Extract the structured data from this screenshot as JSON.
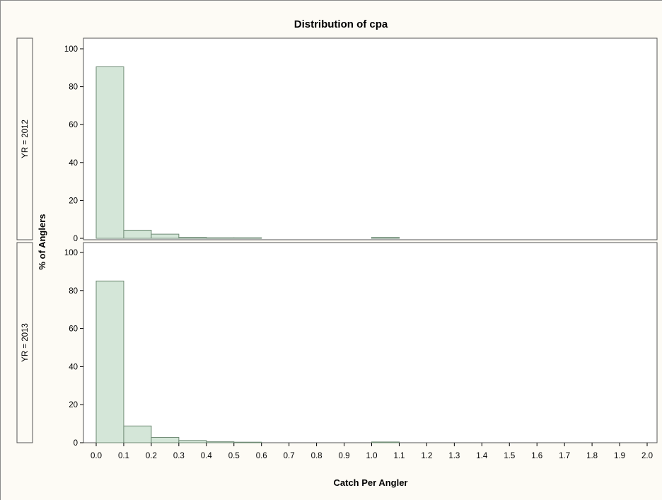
{
  "chart_data": {
    "type": "bar",
    "title": "Distribution of cpa",
    "xlabel": "Catch Per Angler",
    "ylabel": "% of Anglers",
    "xlim": [
      0.0,
      2.0
    ],
    "ylim": [
      0,
      100
    ],
    "xticks": [
      "0.0",
      "0.1",
      "0.2",
      "0.3",
      "0.4",
      "0.5",
      "0.6",
      "0.7",
      "0.8",
      "0.9",
      "1.0",
      "1.1",
      "1.2",
      "1.3",
      "1.4",
      "1.5",
      "1.6",
      "1.7",
      "1.8",
      "1.9",
      "2.0"
    ],
    "yticks": [
      "0",
      "20",
      "40",
      "60",
      "80",
      "100"
    ],
    "bin_width": 0.1,
    "bin_starts": [
      0.0,
      0.1,
      0.2,
      0.3,
      0.4,
      0.5,
      1.0
    ],
    "panels": [
      {
        "strip_label": "YR = 2012",
        "values": [
          90.5,
          4.3,
          2.2,
          0.5,
          0.3,
          0.3,
          0.5
        ]
      },
      {
        "strip_label": "YR = 2013",
        "values": [
          85.0,
          8.8,
          2.8,
          1.2,
          0.5,
          0.3,
          0.4
        ]
      }
    ],
    "colors": {
      "bar_fill": "#d4e6d8",
      "bar_stroke": "#6e8a74",
      "background": "#fdfbf5",
      "frame": "#555555"
    }
  }
}
